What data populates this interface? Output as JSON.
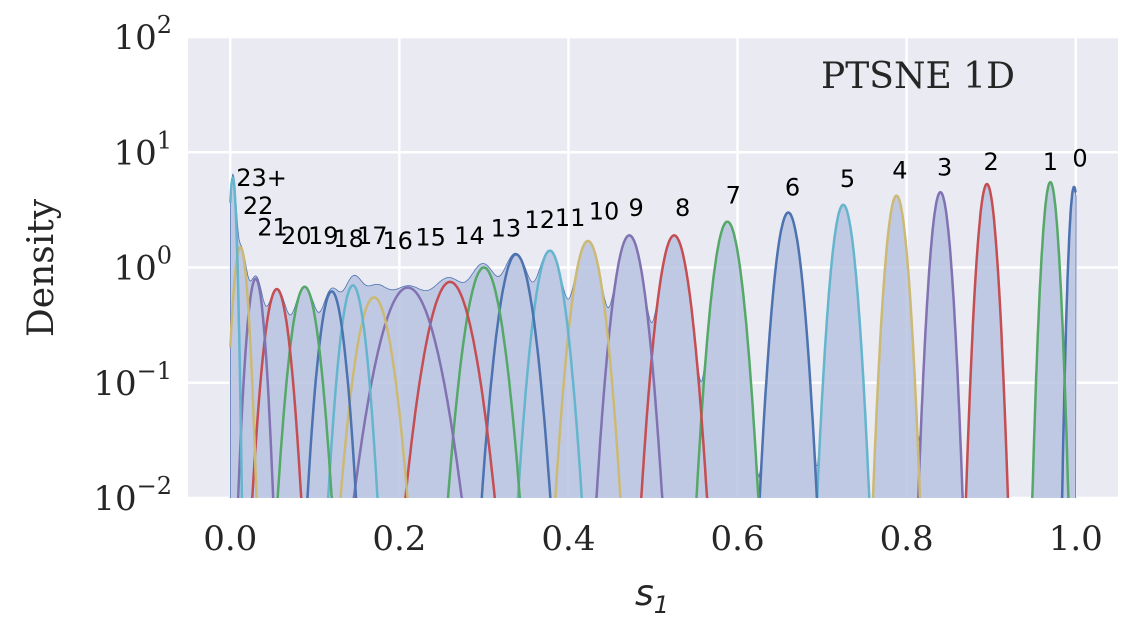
{
  "chart_data": {
    "type": "area",
    "title": "PTSNE 1D",
    "xlabel": "s",
    "xlabel_sub": "1",
    "ylabel": "Density",
    "xlim": [
      -0.05,
      1.05
    ],
    "ylim": [
      0.01,
      100
    ],
    "yscale": "log",
    "grid": true,
    "xticks": [
      0.0,
      0.2,
      0.4,
      0.6,
      0.8,
      1.0
    ],
    "xtick_labels": [
      "0.0",
      "0.2",
      "0.4",
      "0.6",
      "0.8",
      "1.0"
    ],
    "yticks": [
      0.01,
      0.1,
      1,
      10,
      100
    ],
    "ytick_labels": [
      {
        "base": "10",
        "exp": "−2"
      },
      {
        "base": "10",
        "exp": "−1"
      },
      {
        "base": "10",
        "exp": "0"
      },
      {
        "base": "10",
        "exp": "1"
      },
      {
        "base": "10",
        "exp": "2"
      }
    ],
    "colors": {
      "background": "#eaeaf2",
      "grid": "#ffffff",
      "fill": "#b8c3e0",
      "fill_edge": "#4c72b0",
      "palette": [
        "#4c72b0",
        "#55a868",
        "#c44e52",
        "#8172b2",
        "#ccb974",
        "#64b5cd"
      ]
    },
    "components": [
      {
        "label": "0",
        "center": 0.998,
        "peak": 5.0,
        "sigma": 0.004,
        "color": "#4c72b0",
        "label_x": 1.005,
        "label_y": 7.5
      },
      {
        "label": "1",
        "center": 0.97,
        "peak": 5.5,
        "sigma": 0.006,
        "color": "#55a868",
        "label_x": 0.97,
        "label_y": 7.0
      },
      {
        "label": "2",
        "center": 0.895,
        "peak": 5.3,
        "sigma": 0.007,
        "color": "#c44e52",
        "label_x": 0.9,
        "label_y": 7.0
      },
      {
        "label": "3",
        "center": 0.84,
        "peak": 4.5,
        "sigma": 0.0075,
        "color": "#8172b2",
        "label_x": 0.845,
        "label_y": 6.3
      },
      {
        "label": "4",
        "center": 0.788,
        "peak": 4.2,
        "sigma": 0.008,
        "color": "#ccb974",
        "label_x": 0.792,
        "label_y": 5.9
      },
      {
        "label": "5",
        "center": 0.725,
        "peak": 3.5,
        "sigma": 0.009,
        "color": "#64b5cd",
        "label_x": 0.73,
        "label_y": 5.0
      },
      {
        "label": "6",
        "center": 0.66,
        "peak": 3.0,
        "sigma": 0.01,
        "color": "#4c72b0",
        "label_x": 0.665,
        "label_y": 4.2
      },
      {
        "label": "7",
        "center": 0.588,
        "peak": 2.5,
        "sigma": 0.011,
        "color": "#55a868",
        "label_x": 0.595,
        "label_y": 3.6
      },
      {
        "label": "8",
        "center": 0.525,
        "peak": 1.9,
        "sigma": 0.012,
        "color": "#c44e52",
        "label_x": 0.535,
        "label_y": 2.8
      },
      {
        "label": "9",
        "center": 0.472,
        "peak": 1.9,
        "sigma": 0.012,
        "color": "#8172b2",
        "label_x": 0.48,
        "label_y": 2.8
      },
      {
        "label": "10",
        "center": 0.423,
        "peak": 1.7,
        "sigma": 0.012,
        "color": "#ccb974",
        "label_x": 0.442,
        "label_y": 2.6
      },
      {
        "label": "11",
        "center": 0.378,
        "peak": 1.4,
        "sigma": 0.012,
        "color": "#64b5cd",
        "label_x": 0.402,
        "label_y": 2.3
      },
      {
        "label": "12",
        "center": 0.338,
        "peak": 1.3,
        "sigma": 0.013,
        "color": "#4c72b0",
        "label_x": 0.366,
        "label_y": 2.2
      },
      {
        "label": "13",
        "center": 0.3,
        "peak": 1.0,
        "sigma": 0.014,
        "color": "#55a868",
        "label_x": 0.326,
        "label_y": 1.85
      },
      {
        "label": "14",
        "center": 0.26,
        "peak": 0.75,
        "sigma": 0.018,
        "color": "#c44e52",
        "label_x": 0.283,
        "label_y": 1.6
      },
      {
        "label": "15",
        "center": 0.21,
        "peak": 0.67,
        "sigma": 0.022,
        "color": "#8172b2",
        "label_x": 0.237,
        "label_y": 1.55
      },
      {
        "label": "16",
        "center": 0.17,
        "peak": 0.55,
        "sigma": 0.014,
        "color": "#ccb974",
        "label_x": 0.198,
        "label_y": 1.45
      },
      {
        "label": "17",
        "center": 0.145,
        "peak": 0.7,
        "sigma": 0.01,
        "color": "#64b5cd",
        "label_x": 0.168,
        "label_y": 1.6
      },
      {
        "label": "18",
        "center": 0.12,
        "peak": 0.62,
        "sigma": 0.01,
        "color": "#4c72b0",
        "label_x": 0.14,
        "label_y": 1.5
      },
      {
        "label": "19",
        "center": 0.088,
        "peak": 0.68,
        "sigma": 0.011,
        "color": "#55a868",
        "label_x": 0.11,
        "label_y": 1.6
      },
      {
        "label": "20",
        "center": 0.055,
        "peak": 0.65,
        "sigma": 0.01,
        "color": "#c44e52",
        "label_x": 0.078,
        "label_y": 1.6
      },
      {
        "label": "21",
        "center": 0.03,
        "peak": 0.8,
        "sigma": 0.007,
        "color": "#8172b2",
        "label_x": 0.05,
        "label_y": 1.9
      },
      {
        "label": "22",
        "center": 0.012,
        "peak": 1.5,
        "sigma": 0.006,
        "color": "#ccb974",
        "label_x": 0.033,
        "label_y": 2.9
      },
      {
        "label": "23+",
        "center": 0.003,
        "peak": 6.0,
        "sigma": 0.003,
        "color": "#64b5cd",
        "label_x": 0.037,
        "label_y": 5.1
      }
    ]
  }
}
